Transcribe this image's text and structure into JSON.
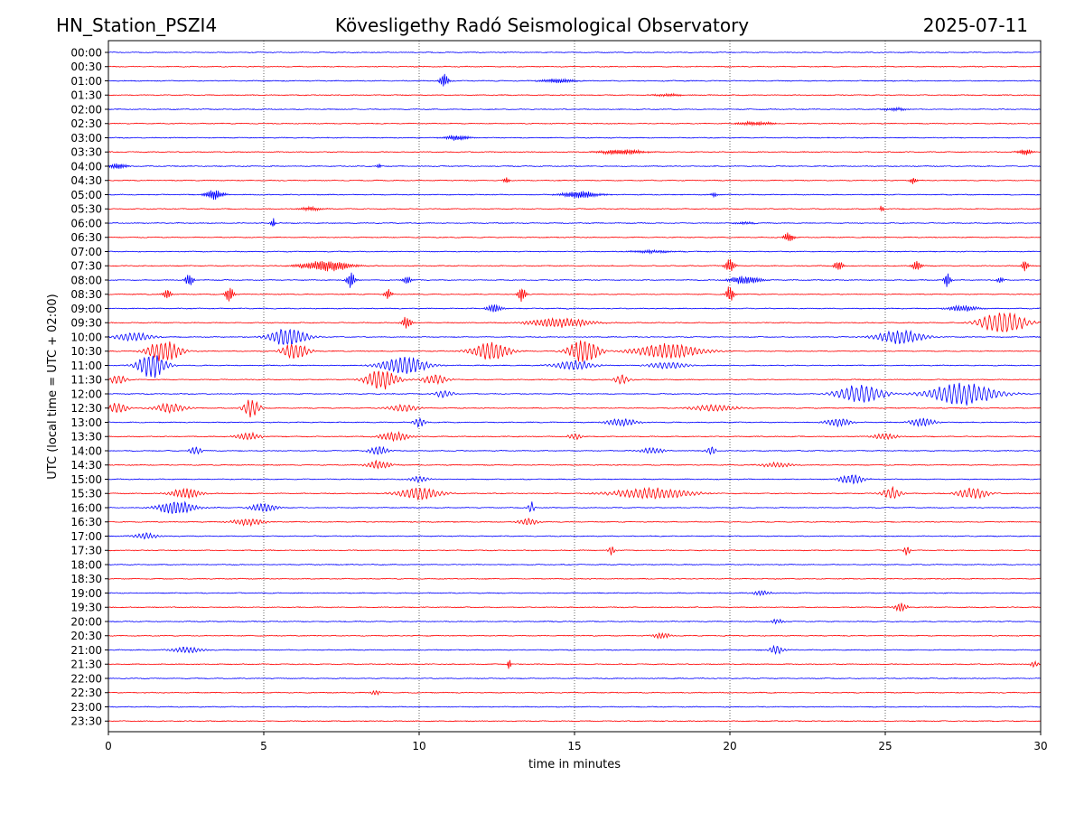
{
  "header": {
    "station": "HN_Station_PSZI4",
    "observatory": "Kövesligethy Radó Seismological Observatory",
    "date": "2025-07-11"
  },
  "chart_data": {
    "type": "line",
    "title": "Kövesligethy Radó Seismological Observatory",
    "xlabel": "time in minutes",
    "ylabel": "UTC (local time = UTC + 02:00)",
    "xlim": [
      0,
      30
    ],
    "xticks": [
      0,
      5,
      10,
      15,
      20,
      25,
      30
    ],
    "xtick_labels": [
      "0",
      "5",
      "10",
      "15",
      "20",
      "25",
      "30"
    ],
    "vertical_gridlines_at": [
      5,
      10,
      15,
      20,
      25
    ],
    "grid": "vertical dotted",
    "row_labels": [
      "00:00",
      "00:30",
      "01:00",
      "01:30",
      "02:00",
      "02:30",
      "03:00",
      "03:30",
      "04:00",
      "04:30",
      "05:00",
      "05:30",
      "06:00",
      "06:30",
      "07:00",
      "07:30",
      "08:00",
      "08:30",
      "09:00",
      "09:30",
      "10:00",
      "10:30",
      "11:00",
      "11:30",
      "12:00",
      "12:30",
      "13:00",
      "13:30",
      "14:00",
      "14:30",
      "15:00",
      "15:30",
      "16:00",
      "16:30",
      "17:00",
      "17:30",
      "18:00",
      "18:30",
      "19:00",
      "19:30",
      "20:00",
      "20:30",
      "21:00",
      "21:30",
      "22:00",
      "22:30",
      "23:00",
      "23:30"
    ],
    "colors": [
      "#0000ff",
      "#ff0000"
    ],
    "events": [
      {
        "row": 2,
        "t": 10.8,
        "amp": 0.55,
        "dur": 0.3,
        "period": 0.07
      },
      {
        "row": 2,
        "t": 14.5,
        "amp": 0.18,
        "dur": 1.2,
        "period": 0.06
      },
      {
        "row": 3,
        "t": 18.0,
        "amp": 0.1,
        "dur": 1.0,
        "period": 0.06
      },
      {
        "row": 4,
        "t": 25.3,
        "amp": 0.12,
        "dur": 0.8,
        "period": 0.06
      },
      {
        "row": 5,
        "t": 20.8,
        "amp": 0.15,
        "dur": 1.2,
        "period": 0.06
      },
      {
        "row": 6,
        "t": 11.2,
        "amp": 0.22,
        "dur": 0.8,
        "period": 0.06
      },
      {
        "row": 7,
        "t": 16.5,
        "amp": 0.22,
        "dur": 1.5,
        "period": 0.06
      },
      {
        "row": 7,
        "t": 29.5,
        "amp": 0.25,
        "dur": 0.5,
        "period": 0.06
      },
      {
        "row": 8,
        "t": 0.3,
        "amp": 0.25,
        "dur": 0.6,
        "period": 0.06
      },
      {
        "row": 8,
        "t": 8.7,
        "amp": 0.25,
        "dur": 0.15,
        "period": 0.06
      },
      {
        "row": 9,
        "t": 12.8,
        "amp": 0.22,
        "dur": 0.2,
        "period": 0.06
      },
      {
        "row": 9,
        "t": 25.9,
        "amp": 0.35,
        "dur": 0.2,
        "period": 0.06
      },
      {
        "row": 10,
        "t": 3.4,
        "amp": 0.4,
        "dur": 0.6,
        "period": 0.06
      },
      {
        "row": 10,
        "t": 15.2,
        "amp": 0.3,
        "dur": 1.2,
        "period": 0.06
      },
      {
        "row": 10,
        "t": 19.5,
        "amp": 0.2,
        "dur": 0.2,
        "period": 0.06
      },
      {
        "row": 11,
        "t": 6.5,
        "amp": 0.15,
        "dur": 0.8,
        "period": 0.06
      },
      {
        "row": 11,
        "t": 24.9,
        "amp": 0.3,
        "dur": 0.15,
        "period": 0.06
      },
      {
        "row": 12,
        "t": 5.3,
        "amp": 0.4,
        "dur": 0.15,
        "period": 0.06
      },
      {
        "row": 12,
        "t": 20.5,
        "amp": 0.12,
        "dur": 0.6,
        "period": 0.06
      },
      {
        "row": 13,
        "t": 21.9,
        "amp": 0.4,
        "dur": 0.3,
        "period": 0.06
      },
      {
        "row": 14,
        "t": 17.5,
        "amp": 0.12,
        "dur": 1.5,
        "period": 0.06
      },
      {
        "row": 15,
        "t": 7.0,
        "amp": 0.45,
        "dur": 1.6,
        "period": 0.07
      },
      {
        "row": 15,
        "t": 20.0,
        "amp": 0.55,
        "dur": 0.3,
        "period": 0.07
      },
      {
        "row": 15,
        "t": 23.5,
        "amp": 0.4,
        "dur": 0.3,
        "period": 0.07
      },
      {
        "row": 15,
        "t": 26.0,
        "amp": 0.4,
        "dur": 0.3,
        "period": 0.07
      },
      {
        "row": 15,
        "t": 29.5,
        "amp": 0.5,
        "dur": 0.2,
        "period": 0.07
      },
      {
        "row": 16,
        "t": 2.6,
        "amp": 0.55,
        "dur": 0.25,
        "period": 0.07
      },
      {
        "row": 16,
        "t": 7.8,
        "amp": 0.7,
        "dur": 0.25,
        "period": 0.07
      },
      {
        "row": 16,
        "t": 9.6,
        "amp": 0.3,
        "dur": 0.3,
        "period": 0.07
      },
      {
        "row": 16,
        "t": 20.5,
        "amp": 0.35,
        "dur": 1.0,
        "period": 0.07
      },
      {
        "row": 16,
        "t": 27.0,
        "amp": 0.7,
        "dur": 0.2,
        "period": 0.07
      },
      {
        "row": 16,
        "t": 28.7,
        "amp": 0.3,
        "dur": 0.2,
        "period": 0.07
      },
      {
        "row": 17,
        "t": 1.9,
        "amp": 0.45,
        "dur": 0.25,
        "period": 0.07
      },
      {
        "row": 17,
        "t": 3.9,
        "amp": 0.65,
        "dur": 0.25,
        "period": 0.07
      },
      {
        "row": 17,
        "t": 9.0,
        "amp": 0.4,
        "dur": 0.25,
        "period": 0.07
      },
      {
        "row": 17,
        "t": 13.3,
        "amp": 0.65,
        "dur": 0.25,
        "period": 0.07
      },
      {
        "row": 17,
        "t": 20.0,
        "amp": 0.7,
        "dur": 0.25,
        "period": 0.07
      },
      {
        "row": 18,
        "t": 12.4,
        "amp": 0.35,
        "dur": 0.5,
        "period": 0.08
      },
      {
        "row": 18,
        "t": 27.5,
        "amp": 0.25,
        "dur": 1.0,
        "period": 0.08
      },
      {
        "row": 19,
        "t": 9.6,
        "amp": 0.55,
        "dur": 0.3,
        "period": 0.08
      },
      {
        "row": 19,
        "t": 14.5,
        "amp": 0.4,
        "dur": 2.0,
        "period": 0.12
      },
      {
        "row": 19,
        "t": 28.8,
        "amp": 0.95,
        "dur": 1.4,
        "period": 0.16
      },
      {
        "row": 20,
        "t": 0.8,
        "amp": 0.35,
        "dur": 1.2,
        "period": 0.14
      },
      {
        "row": 20,
        "t": 5.8,
        "amp": 0.75,
        "dur": 1.2,
        "period": 0.14
      },
      {
        "row": 20,
        "t": 25.5,
        "amp": 0.55,
        "dur": 1.5,
        "period": 0.14
      },
      {
        "row": 21,
        "t": 1.8,
        "amp": 0.9,
        "dur": 1.0,
        "period": 0.14
      },
      {
        "row": 21,
        "t": 6.0,
        "amp": 0.7,
        "dur": 0.8,
        "period": 0.14
      },
      {
        "row": 21,
        "t": 12.3,
        "amp": 0.75,
        "dur": 1.2,
        "period": 0.14
      },
      {
        "row": 21,
        "t": 15.3,
        "amp": 0.9,
        "dur": 1.0,
        "period": 0.14
      },
      {
        "row": 21,
        "t": 18.0,
        "amp": 0.6,
        "dur": 2.2,
        "period": 0.14
      },
      {
        "row": 22,
        "t": 1.4,
        "amp": 1.0,
        "dur": 0.9,
        "period": 0.14
      },
      {
        "row": 22,
        "t": 9.5,
        "amp": 0.7,
        "dur": 1.5,
        "period": 0.14
      },
      {
        "row": 22,
        "t": 15.0,
        "amp": 0.4,
        "dur": 1.2,
        "period": 0.14
      },
      {
        "row": 22,
        "t": 18.0,
        "amp": 0.3,
        "dur": 1.2,
        "period": 0.14
      },
      {
        "row": 23,
        "t": 0.3,
        "amp": 0.4,
        "dur": 0.5,
        "period": 0.14
      },
      {
        "row": 23,
        "t": 8.8,
        "amp": 0.8,
        "dur": 1.0,
        "period": 0.14
      },
      {
        "row": 23,
        "t": 10.5,
        "amp": 0.4,
        "dur": 0.8,
        "period": 0.14
      },
      {
        "row": 23,
        "t": 16.5,
        "amp": 0.35,
        "dur": 0.5,
        "period": 0.14
      },
      {
        "row": 24,
        "t": 10.8,
        "amp": 0.3,
        "dur": 0.6,
        "period": 0.14
      },
      {
        "row": 24,
        "t": 24.2,
        "amp": 0.7,
        "dur": 1.5,
        "period": 0.16
      },
      {
        "row": 24,
        "t": 27.5,
        "amp": 0.85,
        "dur": 2.2,
        "period": 0.16
      },
      {
        "row": 25,
        "t": 0.3,
        "amp": 0.45,
        "dur": 0.6,
        "period": 0.14
      },
      {
        "row": 25,
        "t": 2.0,
        "amp": 0.4,
        "dur": 1.0,
        "period": 0.14
      },
      {
        "row": 25,
        "t": 4.6,
        "amp": 0.75,
        "dur": 0.5,
        "period": 0.14
      },
      {
        "row": 25,
        "t": 9.5,
        "amp": 0.3,
        "dur": 1.0,
        "period": 0.14
      },
      {
        "row": 25,
        "t": 19.5,
        "amp": 0.25,
        "dur": 1.5,
        "period": 0.14
      },
      {
        "row": 26,
        "t": 10.0,
        "amp": 0.35,
        "dur": 0.4,
        "period": 0.12
      },
      {
        "row": 26,
        "t": 16.5,
        "amp": 0.3,
        "dur": 1.0,
        "period": 0.12
      },
      {
        "row": 26,
        "t": 23.5,
        "amp": 0.35,
        "dur": 0.8,
        "period": 0.12
      },
      {
        "row": 26,
        "t": 26.2,
        "amp": 0.35,
        "dur": 0.8,
        "period": 0.12
      },
      {
        "row": 27,
        "t": 4.5,
        "amp": 0.3,
        "dur": 0.8,
        "period": 0.12
      },
      {
        "row": 27,
        "t": 9.2,
        "amp": 0.35,
        "dur": 1.0,
        "period": 0.12
      },
      {
        "row": 27,
        "t": 15.0,
        "amp": 0.3,
        "dur": 0.4,
        "period": 0.12
      },
      {
        "row": 27,
        "t": 25.0,
        "amp": 0.25,
        "dur": 0.8,
        "period": 0.12
      },
      {
        "row": 28,
        "t": 2.8,
        "amp": 0.3,
        "dur": 0.4,
        "period": 0.12
      },
      {
        "row": 28,
        "t": 8.7,
        "amp": 0.35,
        "dur": 0.6,
        "period": 0.12
      },
      {
        "row": 28,
        "t": 17.5,
        "amp": 0.25,
        "dur": 0.8,
        "period": 0.12
      },
      {
        "row": 28,
        "t": 19.4,
        "amp": 0.35,
        "dur": 0.3,
        "period": 0.12
      },
      {
        "row": 29,
        "t": 8.7,
        "amp": 0.35,
        "dur": 0.8,
        "period": 0.12
      },
      {
        "row": 29,
        "t": 21.5,
        "amp": 0.2,
        "dur": 1.0,
        "period": 0.12
      },
      {
        "row": 30,
        "t": 10.0,
        "amp": 0.25,
        "dur": 0.6,
        "period": 0.12
      },
      {
        "row": 30,
        "t": 23.9,
        "amp": 0.4,
        "dur": 0.8,
        "period": 0.12
      },
      {
        "row": 31,
        "t": 2.5,
        "amp": 0.4,
        "dur": 1.0,
        "period": 0.12
      },
      {
        "row": 31,
        "t": 10.0,
        "amp": 0.5,
        "dur": 1.4,
        "period": 0.14
      },
      {
        "row": 31,
        "t": 17.5,
        "amp": 0.45,
        "dur": 2.5,
        "period": 0.14
      },
      {
        "row": 31,
        "t": 25.2,
        "amp": 0.5,
        "dur": 0.6,
        "period": 0.14
      },
      {
        "row": 31,
        "t": 27.8,
        "amp": 0.45,
        "dur": 1.0,
        "period": 0.14
      },
      {
        "row": 32,
        "t": 2.2,
        "amp": 0.55,
        "dur": 1.2,
        "period": 0.12
      },
      {
        "row": 32,
        "t": 5.0,
        "amp": 0.4,
        "dur": 0.8,
        "period": 0.12
      },
      {
        "row": 32,
        "t": 13.6,
        "amp": 0.5,
        "dur": 0.2,
        "period": 0.12
      },
      {
        "row": 33,
        "t": 4.5,
        "amp": 0.3,
        "dur": 1.0,
        "period": 0.12
      },
      {
        "row": 33,
        "t": 13.5,
        "amp": 0.3,
        "dur": 0.6,
        "period": 0.12
      },
      {
        "row": 34,
        "t": 1.2,
        "amp": 0.25,
        "dur": 0.8,
        "period": 0.12
      },
      {
        "row": 35,
        "t": 16.2,
        "amp": 0.4,
        "dur": 0.2,
        "period": 0.1
      },
      {
        "row": 35,
        "t": 25.7,
        "amp": 0.4,
        "dur": 0.2,
        "period": 0.1
      },
      {
        "row": 38,
        "t": 21.0,
        "amp": 0.2,
        "dur": 0.6,
        "period": 0.1
      },
      {
        "row": 39,
        "t": 25.5,
        "amp": 0.35,
        "dur": 0.4,
        "period": 0.1
      },
      {
        "row": 40,
        "t": 21.5,
        "amp": 0.2,
        "dur": 0.4,
        "period": 0.1
      },
      {
        "row": 41,
        "t": 17.8,
        "amp": 0.25,
        "dur": 0.5,
        "period": 0.1
      },
      {
        "row": 42,
        "t": 2.5,
        "amp": 0.25,
        "dur": 1.0,
        "period": 0.12
      },
      {
        "row": 42,
        "t": 21.5,
        "amp": 0.35,
        "dur": 0.5,
        "period": 0.12
      },
      {
        "row": 43,
        "t": 12.9,
        "amp": 0.55,
        "dur": 0.1,
        "period": 0.06
      },
      {
        "row": 43,
        "t": 29.8,
        "amp": 0.25,
        "dur": 0.3,
        "period": 0.1
      },
      {
        "row": 45,
        "t": 8.6,
        "amp": 0.2,
        "dur": 0.3,
        "period": 0.1
      }
    ]
  }
}
